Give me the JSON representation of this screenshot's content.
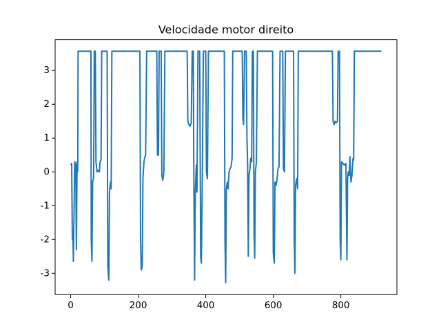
{
  "chart_data": {
    "type": "line",
    "title": "Velocidade motor direito",
    "x": [
      0,
      3,
      5,
      7,
      8,
      12,
      15,
      17,
      19,
      21,
      22,
      60,
      61,
      63,
      65,
      68,
      70,
      73,
      75,
      78,
      80,
      85,
      87,
      90,
      92,
      108,
      110,
      113,
      115,
      118,
      120,
      122,
      205,
      207,
      209,
      212,
      214,
      217,
      220,
      222,
      225,
      255,
      257,
      260,
      262,
      268,
      270,
      273,
      276,
      279,
      345,
      347,
      350,
      353,
      357,
      360,
      363,
      365,
      367,
      369,
      372,
      374,
      377,
      382,
      385,
      387,
      390,
      393,
      400,
      402,
      405,
      408,
      455,
      457,
      459,
      461,
      464,
      466,
      469,
      472,
      475,
      478,
      480,
      508,
      510,
      512,
      515,
      520,
      522,
      524,
      526,
      528,
      531,
      533,
      536,
      538,
      541,
      543,
      545,
      547,
      550,
      553,
      598,
      600,
      603,
      605,
      608,
      611,
      614,
      617,
      620,
      628,
      630,
      633,
      636,
      660,
      662,
      664,
      666,
      669,
      672,
      674,
      775,
      777,
      780,
      783,
      786,
      790,
      792,
      796,
      798,
      800,
      802,
      806,
      810,
      815,
      818,
      820,
      822,
      825,
      827,
      830,
      833,
      836,
      838,
      840,
      920
    ],
    "series": [
      {
        "color": "#1f77b4",
        "values": [
          0.2,
          0.25,
          -2.0,
          -2.0,
          -2.65,
          0.3,
          0.2,
          -2.3,
          0.3,
          0.0,
          3.57,
          3.57,
          -2.0,
          -2.65,
          -0.3,
          -0.2,
          3.57,
          3.57,
          0.3,
          0.0,
          0.05,
          0.0,
          0.3,
          0.35,
          3.57,
          3.57,
          -2.8,
          -3.2,
          -0.6,
          -0.3,
          -0.5,
          3.57,
          3.57,
          -2.0,
          -2.9,
          -2.8,
          -0.2,
          0.3,
          0.45,
          0.5,
          3.57,
          3.57,
          0.5,
          0.5,
          3.57,
          3.57,
          -0.1,
          -0.25,
          0.0,
          3.57,
          3.57,
          1.5,
          1.4,
          1.35,
          1.45,
          3.57,
          3.57,
          -0.6,
          -3.2,
          -0.6,
          0.2,
          -0.6,
          3.57,
          3.57,
          -2.5,
          -2.7,
          0.1,
          3.57,
          3.57,
          0.0,
          -0.2,
          3.57,
          3.57,
          -2.0,
          -3.28,
          -0.5,
          -0.3,
          -0.5,
          0.0,
          0.1,
          0.15,
          0.4,
          3.57,
          3.57,
          1.6,
          1.4,
          3.57,
          3.57,
          1.0,
          0.2,
          -2.5,
          -0.1,
          0.1,
          0.4,
          0.3,
          3.57,
          3.57,
          -1.8,
          -2.55,
          0.0,
          0.3,
          3.57,
          3.57,
          -2.4,
          -2.7,
          -0.3,
          -0.4,
          -0.25,
          0.1,
          0.15,
          3.57,
          3.57,
          0.1,
          0.0,
          3.57,
          3.57,
          -2.0,
          -3.0,
          -0.4,
          -0.2,
          -0.5,
          3.57,
          3.57,
          1.5,
          1.4,
          1.5,
          1.45,
          1.5,
          3.57,
          3.57,
          -2.0,
          -2.6,
          0.3,
          0.25,
          0.2,
          0.25,
          -2.6,
          -0.2,
          0.0,
          -0.1,
          0.45,
          -0.3,
          -0.1,
          0.4,
          0.35,
          3.57,
          3.57
        ]
      }
    ],
    "xlim": [
      -46,
      966
    ],
    "ylim": [
      -3.63,
      3.91
    ],
    "xticks": [
      0,
      200,
      400,
      600,
      800
    ],
    "yticks": [
      -3,
      -2,
      -1,
      0,
      1,
      2,
      3
    ]
  }
}
